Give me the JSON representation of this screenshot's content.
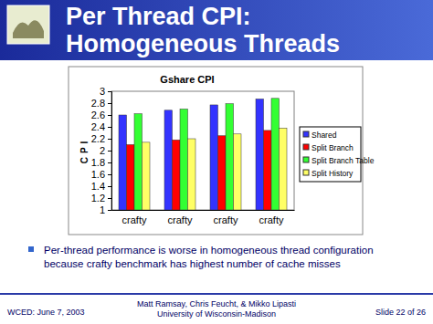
{
  "slide": {
    "title_lines": [
      "Per Thread CPI:",
      "Homogeneous Threads"
    ],
    "bullet_lines": [
      "Per-thread performance is worse in homogeneous thread configuration",
      "because crafty benchmark has highest number of cache misses"
    ],
    "footer_left": "WCED: June 7, 2003",
    "footer_center": [
      "Matt Ramsay, Chris Feucht, & Mikko Lipasti",
      "University of Wisconsin-Madison"
    ],
    "footer_right": "Slide 22 of 26"
  },
  "chart_data": {
    "type": "bar",
    "title": "Gshare CPI",
    "y_label": "CPI",
    "categories": [
      "crafty",
      "crafty",
      "crafty",
      "crafty"
    ],
    "series": [
      {
        "name": "Shared",
        "color": "#3333ff",
        "values": [
          2.6,
          2.68,
          2.77,
          2.87
        ]
      },
      {
        "name": "Split Branch",
        "color": "#ff0000",
        "values": [
          2.1,
          2.18,
          2.25,
          2.34
        ]
      },
      {
        "name": "Split Branch Table",
        "color": "#33ff33",
        "values": [
          2.62,
          2.7,
          2.79,
          2.88
        ]
      },
      {
        "name": "Split History",
        "color": "#ffff66",
        "values": [
          2.14,
          2.2,
          2.28,
          2.38
        ]
      }
    ],
    "ylim": [
      1,
      3
    ],
    "yticks": [
      1,
      1.2,
      1.4,
      1.6,
      1.8,
      2,
      2.2,
      2.4,
      2.6,
      2.8,
      3
    ],
    "grid": false,
    "legend": "right"
  }
}
